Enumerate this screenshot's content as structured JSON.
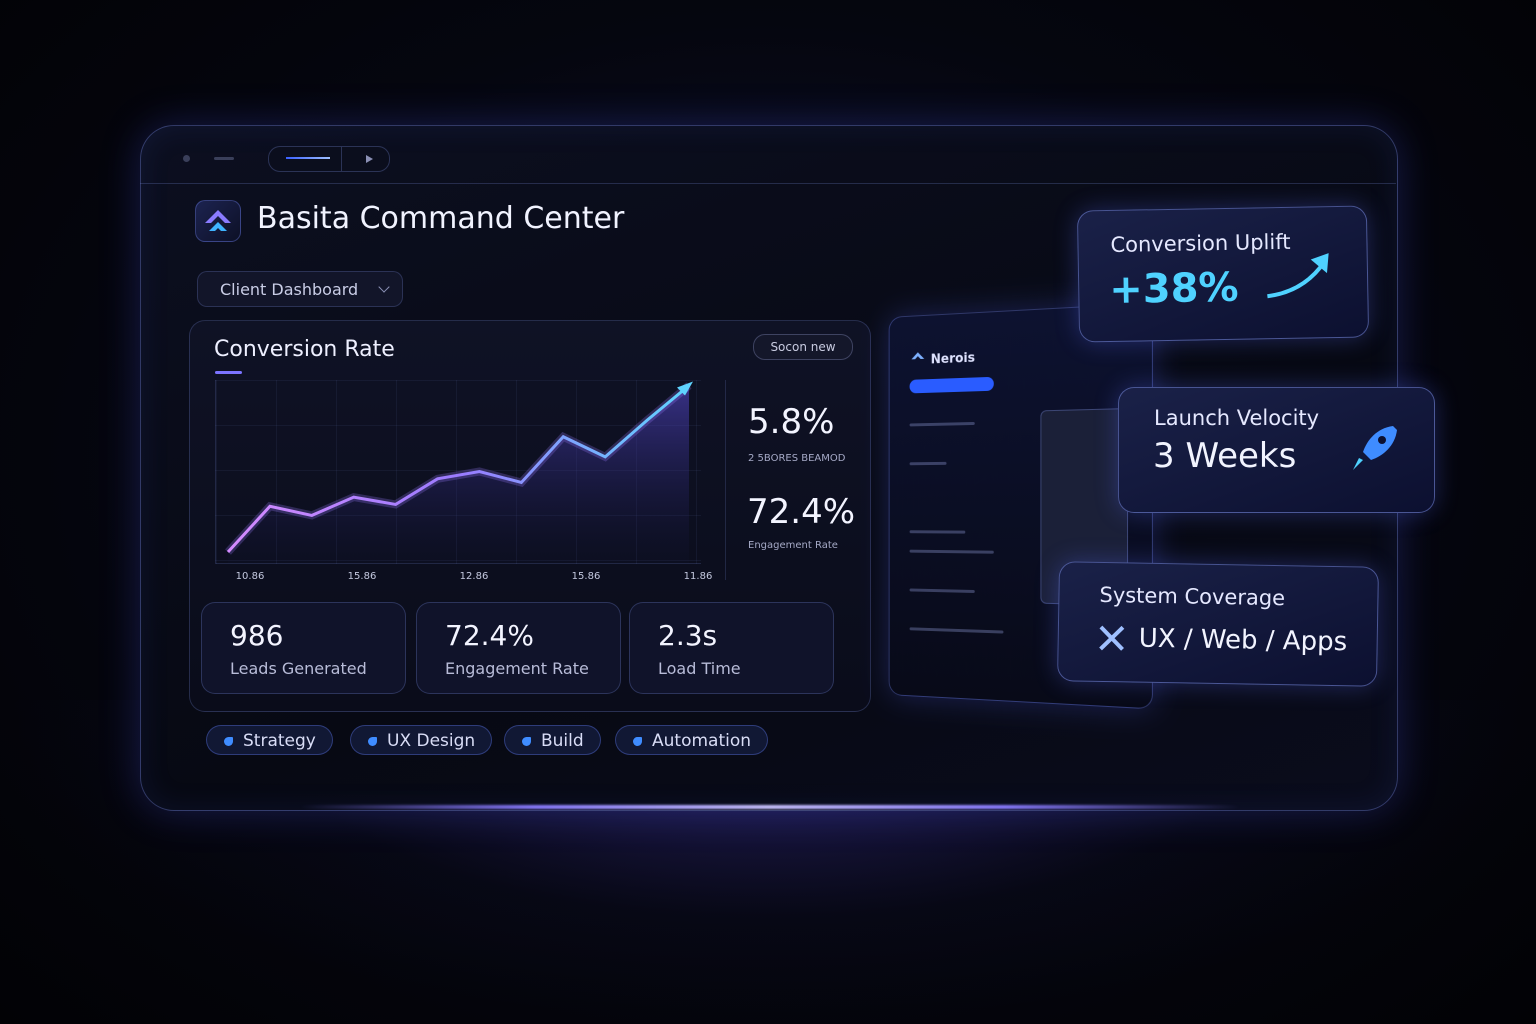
{
  "header": {
    "title": "Basita Command Center",
    "dropdown": "Client Dashboard"
  },
  "conversion_chart": {
    "title": "Conversion Rate",
    "button": "Socon new",
    "values": [
      6,
      31,
      26,
      36,
      32,
      46,
      50,
      44,
      69,
      58,
      78,
      97
    ],
    "ylim": [
      0,
      100
    ],
    "x_labels": [
      "10.86",
      "15.86",
      "12.86",
      "15.86",
      "11.86"
    ],
    "side_stats": [
      {
        "value": "5.8%",
        "label": "2 5BORES BEAMOD"
      },
      {
        "value": "72.4%",
        "label": "Engagement Rate"
      }
    ]
  },
  "metrics": [
    {
      "value": "986",
      "label": "Leads Generated"
    },
    {
      "value": "72.4%",
      "label": "Engagement Rate"
    },
    {
      "value": "2.3s",
      "label": "Load Time"
    }
  ],
  "tags": [
    "Strategy",
    "UX Design",
    "Build",
    "Automation"
  ],
  "preview": {
    "app_name": "Nerois"
  },
  "highlights": [
    {
      "label": "Conversion Uplift",
      "value": "+38%"
    },
    {
      "label": "Launch Velocity",
      "value": "3 Weeks"
    },
    {
      "label": "System Coverage",
      "value": "UX / Web / Apps"
    }
  ]
}
